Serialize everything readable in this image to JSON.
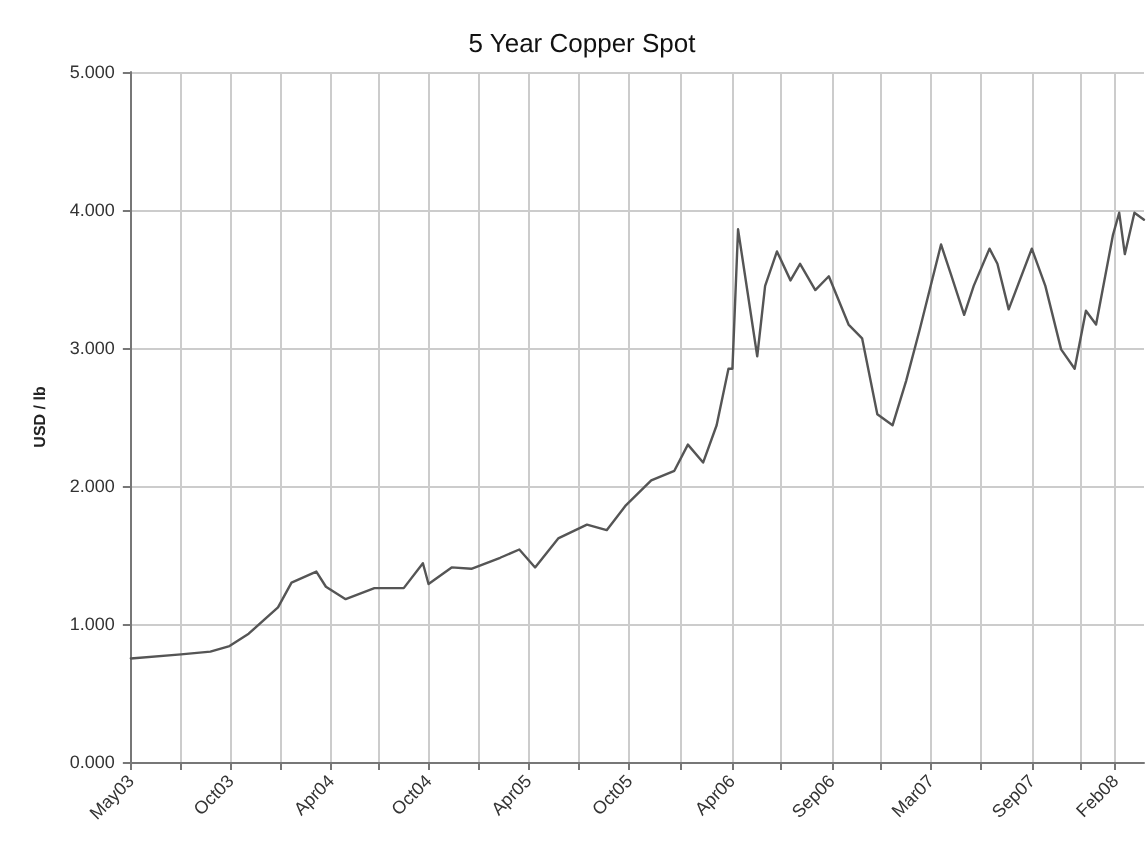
{
  "chart_data": {
    "type": "line",
    "title": "5 Year Copper Spot",
    "ylabel": "USD / lb",
    "xlim": [
      "2003-05-01",
      "2008-04-01"
    ],
    "ylim": [
      0,
      5
    ],
    "xticks": [
      {
        "value": "2003-05-01",
        "label": "May03"
      },
      {
        "value": "2003-07-28",
        "label": null
      },
      {
        "value": "2003-10-25",
        "label": "Oct03"
      },
      {
        "value": "2004-01-22",
        "label": null
      },
      {
        "value": "2004-04-20",
        "label": "Apr04"
      },
      {
        "value": "2004-07-15",
        "label": null
      },
      {
        "value": "2004-10-10",
        "label": "Oct04"
      },
      {
        "value": "2005-01-05",
        "label": null
      },
      {
        "value": "2005-04-05",
        "label": "Apr05"
      },
      {
        "value": "2005-07-03",
        "label": null
      },
      {
        "value": "2005-10-01",
        "label": "Oct05"
      },
      {
        "value": "2005-12-31",
        "label": null
      },
      {
        "value": "2006-04-01",
        "label": "Apr06"
      },
      {
        "value": "2006-06-28",
        "label": null
      },
      {
        "value": "2006-09-25",
        "label": "Sep06"
      },
      {
        "value": "2006-12-22",
        "label": null
      },
      {
        "value": "2007-03-20",
        "label": "Mar07"
      },
      {
        "value": "2007-06-17",
        "label": null
      },
      {
        "value": "2007-09-15",
        "label": "Sep07"
      },
      {
        "value": "2007-12-12",
        "label": null
      },
      {
        "value": "2008-02-10",
        "label": "Feb08"
      }
    ],
    "yticks": [
      {
        "value": 0,
        "label": "0.000"
      },
      {
        "value": 1,
        "label": "1.000"
      },
      {
        "value": 2,
        "label": "2.000"
      },
      {
        "value": 3,
        "label": "3.000"
      },
      {
        "value": 4,
        "label": "4.000"
      },
      {
        "value": 5,
        "label": "5.000"
      }
    ],
    "grid": true,
    "marker": "none",
    "line_style": "solid",
    "x": [
      "2003-05-01",
      "2003-07-29",
      "2003-09-19",
      "2003-10-23",
      "2003-11-26",
      "2004-01-17",
      "2004-02-10",
      "2004-03-25",
      "2004-04-11",
      "2004-05-16",
      "2004-07-06",
      "2004-08-27",
      "2004-09-30",
      "2004-10-10",
      "2004-11-20",
      "2004-12-25",
      "2005-02-14",
      "2005-03-20",
      "2005-04-17",
      "2005-05-28",
      "2005-07-18",
      "2005-08-22",
      "2005-09-25",
      "2005-11-09",
      "2005-12-20",
      "2006-01-13",
      "2006-02-09",
      "2006-03-05",
      "2006-03-26",
      "2006-04-02",
      "2006-04-12",
      "2006-04-29",
      "2006-05-16",
      "2006-05-30",
      "2006-06-20",
      "2006-07-14",
      "2006-07-31",
      "2006-08-27",
      "2006-09-20",
      "2006-10-25",
      "2006-11-18",
      "2006-12-15",
      "2007-01-11",
      "2007-02-04",
      "2007-02-28",
      "2007-04-07",
      "2007-04-24",
      "2007-05-18",
      "2007-06-04",
      "2007-07-02",
      "2007-07-16",
      "2007-08-05",
      "2007-09-15",
      "2007-10-09",
      "2007-11-06",
      "2007-11-30",
      "2007-12-20",
      "2008-01-07",
      "2008-02-06",
      "2008-02-17",
      "2008-02-27",
      "2008-03-15",
      "2008-04-01"
    ],
    "series": [
      {
        "color": "#555555",
        "values": [
          0.75,
          0.78,
          0.8,
          0.84,
          0.93,
          1.12,
          1.3,
          1.38,
          1.27,
          1.18,
          1.26,
          1.26,
          1.44,
          1.29,
          1.41,
          1.4,
          1.48,
          1.54,
          1.41,
          1.62,
          1.72,
          1.68,
          1.86,
          2.04,
          2.11,
          2.3,
          2.17,
          2.44,
          2.85,
          2.85,
          3.86,
          3.4,
          2.94,
          3.45,
          3.7,
          3.49,
          3.61,
          3.42,
          3.52,
          3.17,
          3.07,
          2.52,
          2.44,
          2.76,
          3.13,
          3.75,
          3.54,
          3.24,
          3.45,
          3.72,
          3.61,
          3.28,
          3.72,
          3.45,
          2.99,
          2.85,
          3.27,
          3.17,
          3.82,
          3.98,
          3.68,
          3.98,
          3.93
        ]
      }
    ]
  }
}
